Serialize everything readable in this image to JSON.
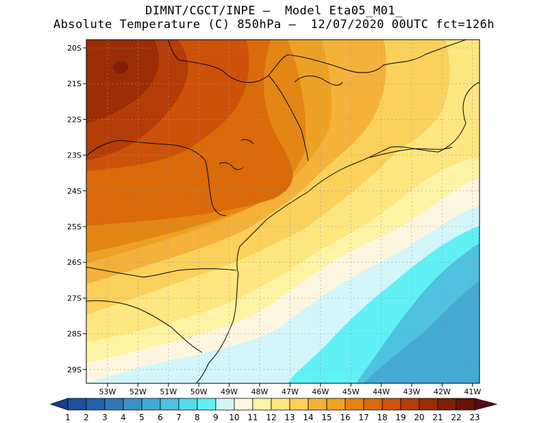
{
  "title": {
    "line1": "DIMNT/CGCT/INPE –  Model Eta05_M01_",
    "line2": "Absolute Temperature (C) 850hPa –  12/07/2020 00UTC fct=126h"
  },
  "map": {
    "lat_labels": [
      "20S",
      "21S",
      "22S",
      "23S",
      "24S",
      "25S",
      "26S",
      "27S",
      "28S",
      "29S"
    ],
    "lon_labels": [
      "53W",
      "52W",
      "51W",
      "50W",
      "49W",
      "48W",
      "47W",
      "46W",
      "45W",
      "44W",
      "43W",
      "42W",
      "41W"
    ],
    "gridlines": "dotted"
  },
  "colorbar": {
    "labels": [
      "1",
      "2",
      "3",
      "4",
      "5",
      "6",
      "7",
      "8",
      "9",
      "10",
      "11",
      "12",
      "13",
      "14",
      "15",
      "16",
      "17",
      "18",
      "19",
      "20",
      "21",
      "22",
      "23"
    ],
    "colors": [
      "#1a3d8f",
      "#1e4f9e",
      "#2461ab",
      "#2f78b8",
      "#3a91c6",
      "#44a9d3",
      "#4ec2df",
      "#55dcea",
      "#60f0f5",
      "#d2f6fa",
      "#fff6e1",
      "#fff4a5",
      "#ffe680",
      "#fbd15c",
      "#f4b23b",
      "#eda224",
      "#e48614",
      "#da6a0a",
      "#cc520a",
      "#b43c07",
      "#9a2d06",
      "#7f1f06",
      "#6b1107",
      "#5a0818"
    ]
  }
}
